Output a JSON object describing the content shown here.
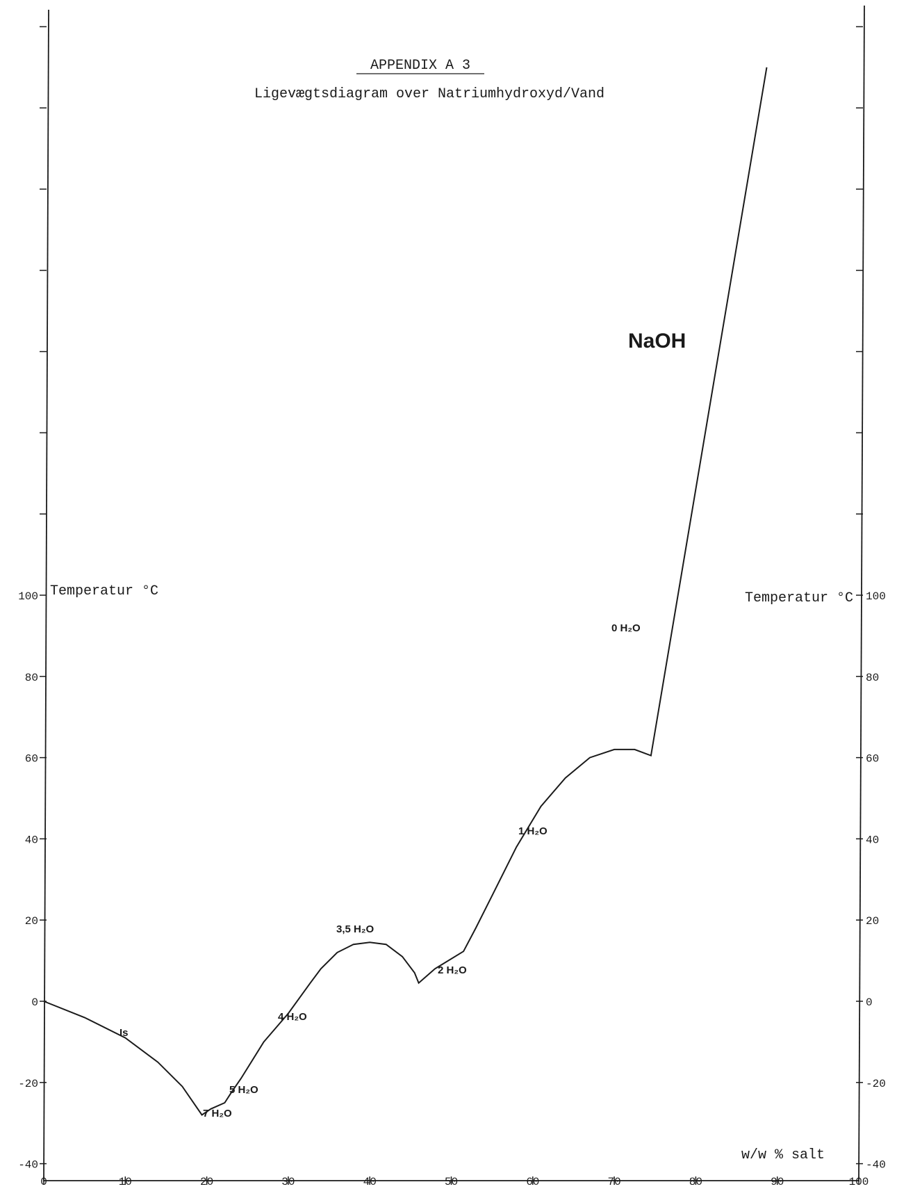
{
  "chart_data": {
    "type": "line",
    "title": "APPENDIX A 3",
    "subtitle": "Ligevægtsdiagram over Natriumhydroxyd/Vand",
    "xlabel": "w/w % salt",
    "ylabel_left": "Temperatur °C",
    "ylabel_right": "Temperatur °C",
    "xlim": [
      0,
      100
    ],
    "ylim": [
      -40,
      100
    ],
    "x_ticks": [
      "0",
      "10",
      "20",
      "30",
      "40",
      "50",
      "60",
      "70",
      "80",
      "90",
      "100"
    ],
    "y_ticks_left": [
      "-40",
      "-20",
      "0",
      "20",
      "40",
      "60",
      "80",
      "100"
    ],
    "y_ticks_right": [
      "-40",
      "-20",
      "0",
      "20",
      "40",
      "60",
      "80",
      "100"
    ],
    "grid": false,
    "series": [
      {
        "points": [
          [
            0,
            0
          ],
          [
            5,
            -4
          ],
          [
            10,
            -9
          ],
          [
            14,
            -15
          ],
          [
            17,
            -21
          ],
          [
            19.4,
            -28
          ],
          [
            20.5,
            -26.5
          ],
          [
            22.2,
            -25
          ],
          [
            23,
            -22.5
          ],
          [
            24.2,
            -19
          ],
          [
            27,
            -10
          ],
          [
            30,
            -3
          ],
          [
            32.7,
            4.5
          ],
          [
            34,
            8
          ],
          [
            36,
            12
          ],
          [
            38,
            14
          ],
          [
            40,
            14.5
          ],
          [
            42,
            14
          ],
          [
            44,
            11
          ],
          [
            45.5,
            7
          ],
          [
            46,
            4.5
          ],
          [
            48,
            8
          ],
          [
            51.5,
            12.3
          ],
          [
            53,
            18
          ],
          [
            55,
            26
          ],
          [
            58,
            38
          ],
          [
            61,
            48
          ],
          [
            64,
            55
          ],
          [
            67,
            60
          ],
          [
            70,
            62
          ],
          [
            72.5,
            62
          ],
          [
            74.5,
            60.5
          ],
          [
            88.7,
            230
          ]
        ]
      }
    ],
    "annotations": [
      "Is",
      "7 H₂O",
      "5 H₂O",
      "4 H₂O",
      "3,5 H₂O",
      "2 H₂O",
      "1 H₂O",
      "0 H₂O",
      "NaOH"
    ]
  }
}
